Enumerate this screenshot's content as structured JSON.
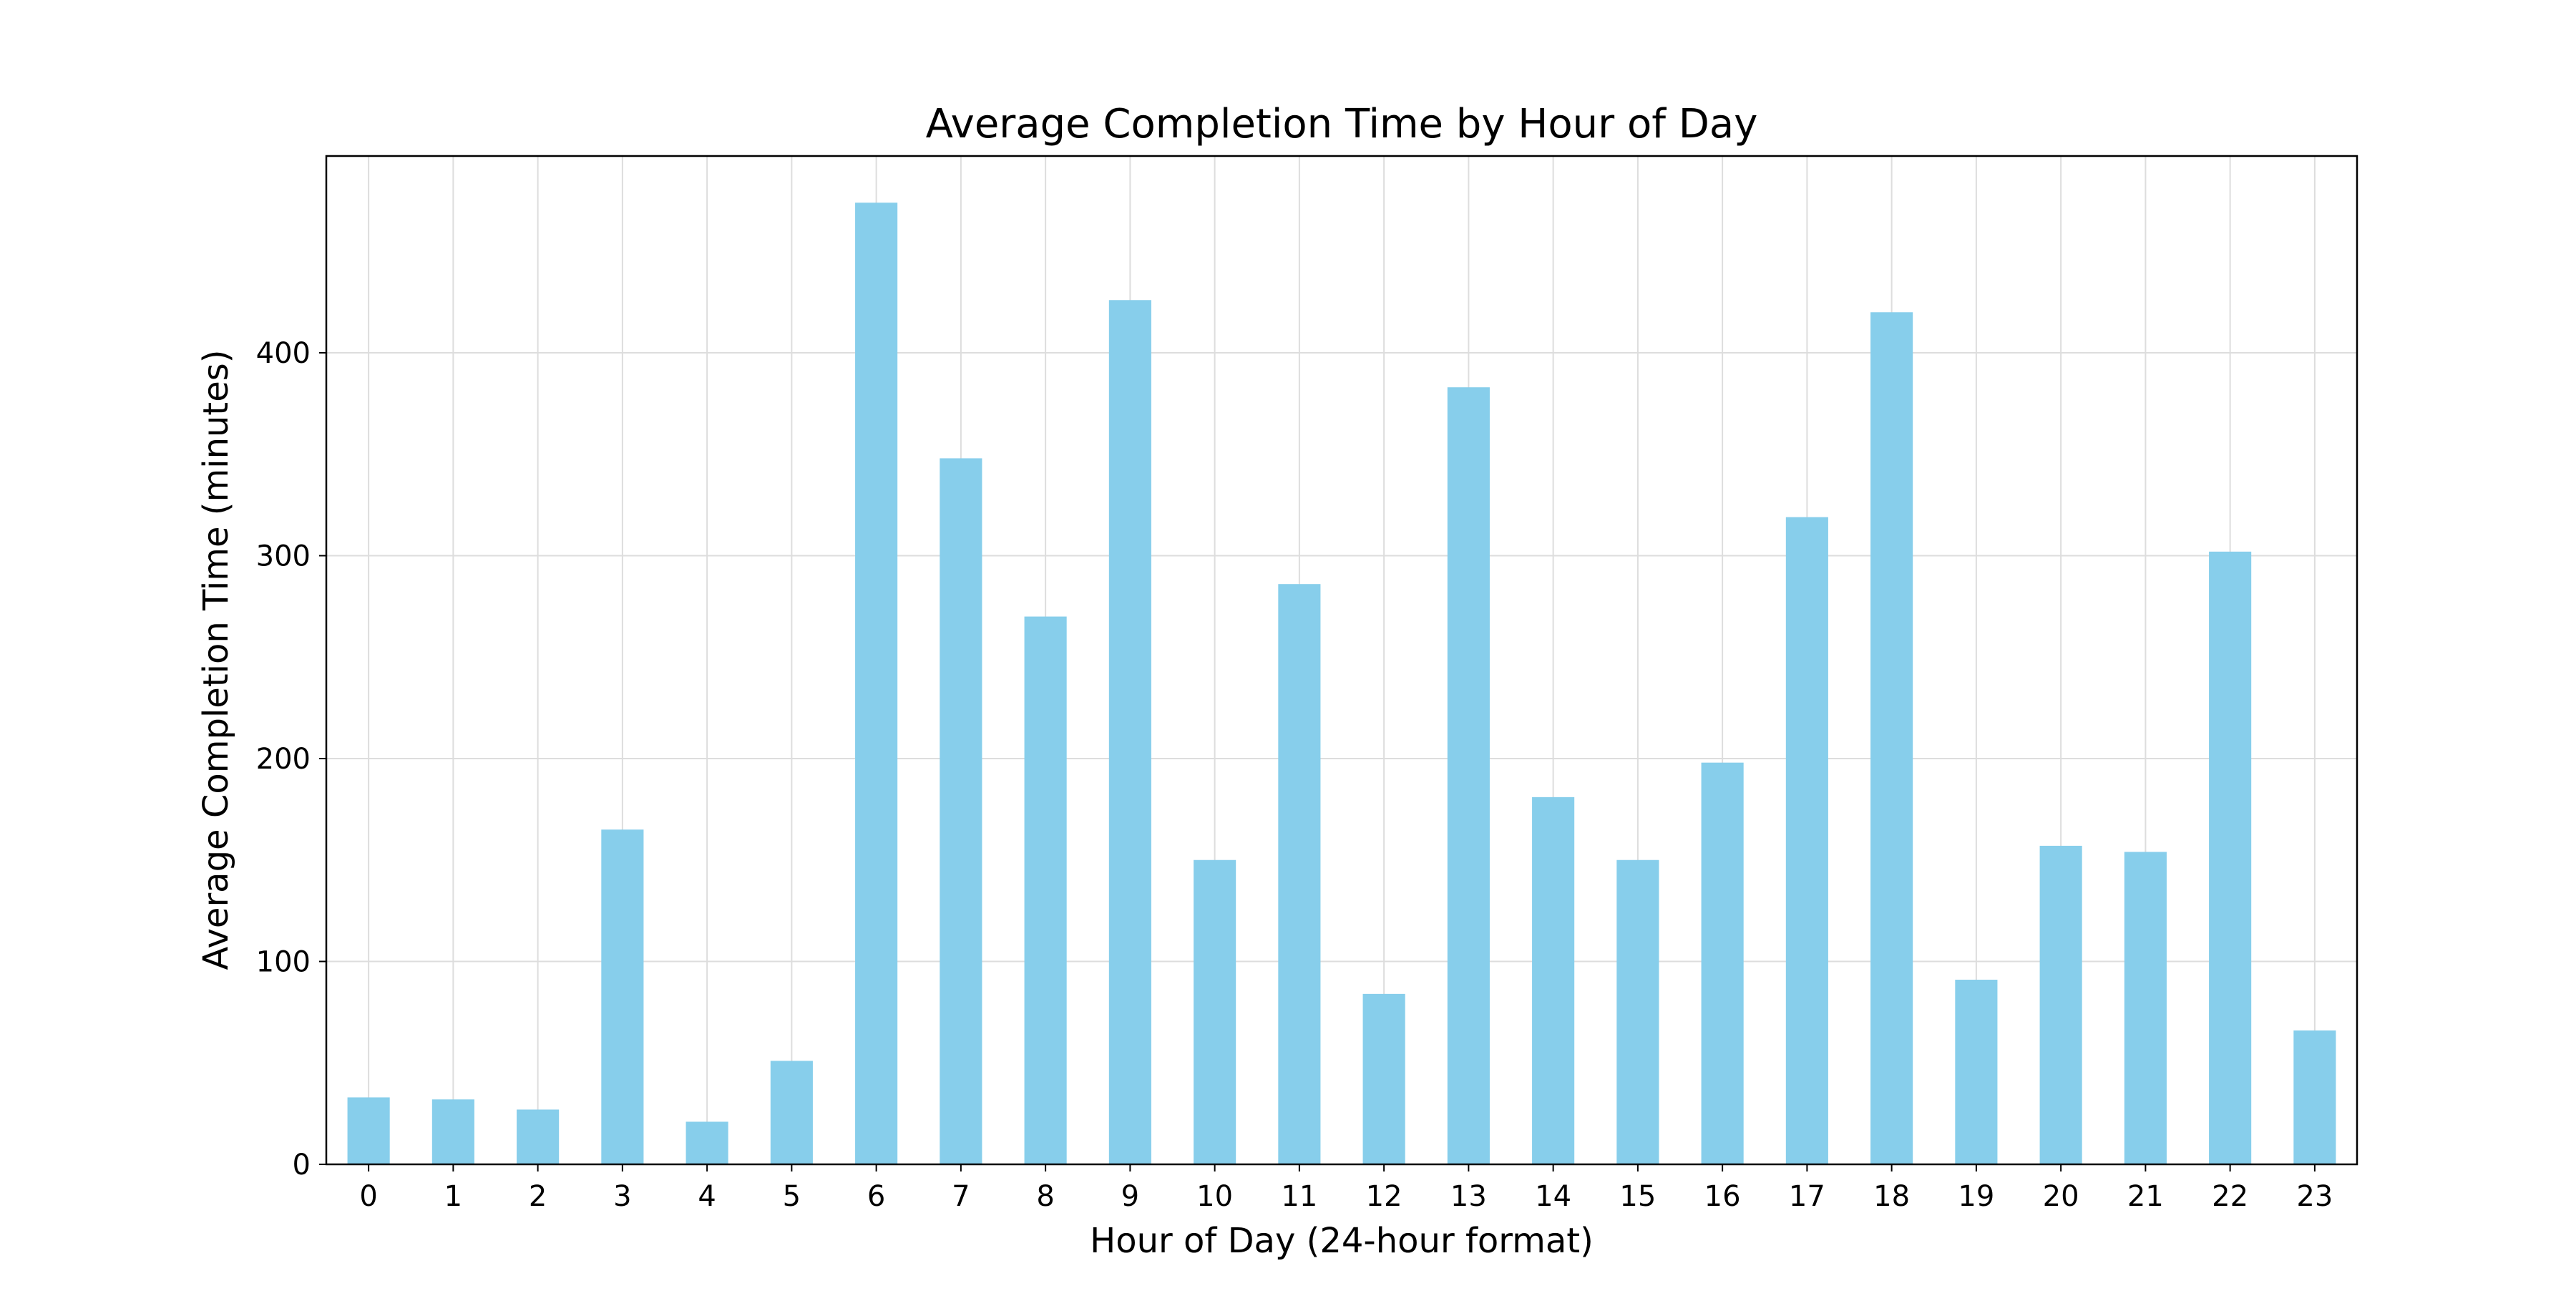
{
  "chart_data": {
    "type": "bar",
    "title": "Average Completion Time by Hour of Day",
    "xlabel": "Hour of Day (24-hour format)",
    "ylabel": "Average Completion Time (minutes)",
    "categories": [
      "0",
      "1",
      "2",
      "3",
      "4",
      "5",
      "6",
      "7",
      "8",
      "9",
      "10",
      "11",
      "12",
      "13",
      "14",
      "15",
      "16",
      "17",
      "18",
      "19",
      "20",
      "21",
      "22",
      "23"
    ],
    "values": [
      33,
      32,
      27,
      165,
      21,
      51,
      474,
      348,
      270,
      426,
      150,
      286,
      84,
      383,
      181,
      150,
      198,
      319,
      420,
      91,
      157,
      154,
      302,
      66
    ],
    "ylim": [
      0,
      497
    ],
    "yticks": [
      0,
      100,
      200,
      300,
      400
    ],
    "grid": true,
    "legend": "none",
    "bar_color": "#87CEEB",
    "grid_color": "#dddddd",
    "axis_color": "#000000"
  }
}
